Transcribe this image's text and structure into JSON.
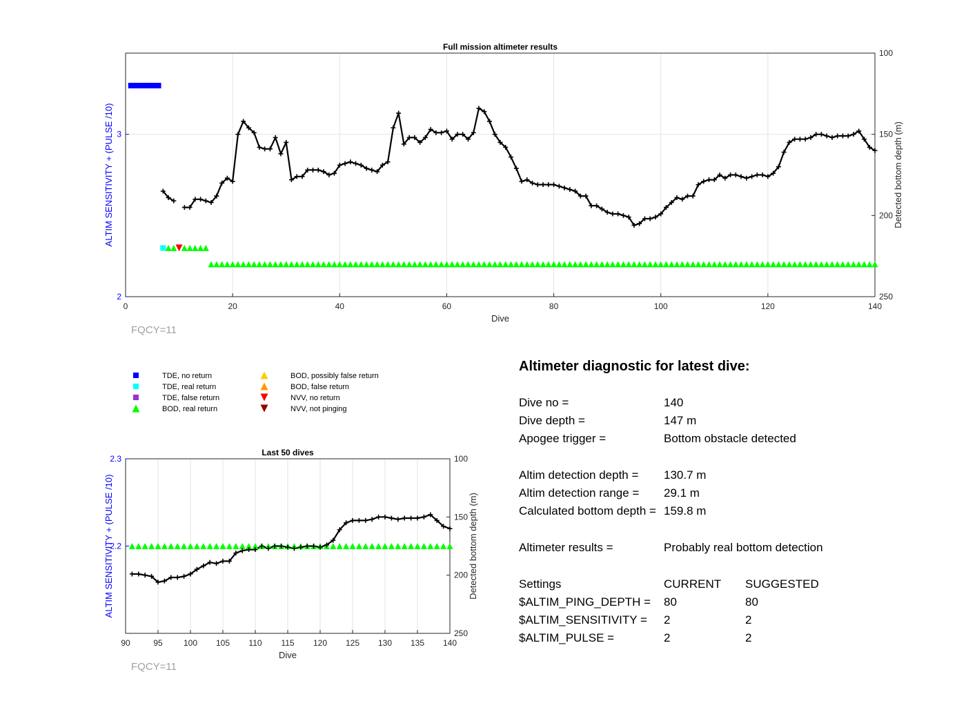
{
  "chart_data": [
    {
      "type": "line",
      "title": "Full mission altimeter results",
      "xlabel": "Dive",
      "ylabel": "ALTIM SENSITIVITY + (PULSE /10)",
      "y2label": "Detected bottom depth (m)",
      "xlim": [
        0,
        140
      ],
      "ylim": [
        2,
        3.5
      ],
      "y2lim": [
        250,
        100
      ],
      "y2_reversed": true,
      "xticks": [
        0,
        20,
        40,
        60,
        80,
        100,
        120,
        140
      ],
      "yticks": [
        2,
        3
      ],
      "y2ticks": [
        100,
        150,
        200,
        250
      ],
      "grid": true,
      "annotation": "FQCY=11",
      "series": [
        {
          "name": "Detected bottom depth",
          "axis": "right",
          "segments": [
            [
              [
                7,
                185
              ],
              [
                8,
                189
              ],
              [
                9,
                191
              ]
            ],
            [
              [
                11,
                195
              ],
              [
                12,
                195
              ],
              [
                13,
                190
              ],
              [
                14,
                190
              ],
              [
                15,
                191
              ],
              [
                16,
                192
              ],
              [
                17,
                188
              ],
              [
                18,
                180
              ],
              [
                19,
                177
              ],
              [
                20,
                179
              ],
              [
                21,
                150
              ],
              [
                22,
                142
              ],
              [
                23,
                146
              ],
              [
                24,
                149
              ],
              [
                25,
                158
              ],
              [
                26,
                159
              ],
              [
                27,
                159
              ],
              [
                28,
                152
              ],
              [
                29,
                162
              ],
              [
                30,
                155
              ],
              [
                31,
                178
              ],
              [
                32,
                176
              ],
              [
                33,
                176
              ],
              [
                34,
                172
              ],
              [
                35,
                172
              ],
              [
                36,
                172
              ],
              [
                37,
                173
              ],
              [
                38,
                175
              ],
              [
                39,
                174
              ],
              [
                40,
                169
              ],
              [
                41,
                168
              ],
              [
                42,
                167
              ],
              [
                43,
                168
              ],
              [
                44,
                169
              ],
              [
                45,
                171
              ],
              [
                46,
                172
              ],
              [
                47,
                173
              ],
              [
                48,
                169
              ],
              [
                49,
                167
              ],
              [
                50,
                146
              ],
              [
                51,
                137
              ],
              [
                52,
                156
              ],
              [
                53,
                152
              ],
              [
                54,
                152
              ],
              [
                55,
                155
              ],
              [
                56,
                152
              ],
              [
                57,
                147
              ],
              [
                58,
                149
              ],
              [
                59,
                149
              ],
              [
                60,
                148
              ],
              [
                61,
                153
              ],
              [
                62,
                150
              ],
              [
                63,
                150
              ],
              [
                64,
                153
              ],
              [
                65,
                149
              ],
              [
                66,
                134
              ],
              [
                67,
                136
              ],
              [
                68,
                142
              ],
              [
                69,
                150
              ],
              [
                70,
                155
              ],
              [
                71,
                158
              ],
              [
                72,
                164
              ],
              [
                73,
                171
              ],
              [
                74,
                179
              ],
              [
                75,
                178
              ],
              [
                76,
                180
              ],
              [
                77,
                181
              ],
              [
                78,
                181
              ],
              [
                79,
                181
              ],
              [
                80,
                181
              ],
              [
                81,
                182
              ],
              [
                82,
                183
              ],
              [
                83,
                184
              ],
              [
                84,
                185
              ],
              [
                85,
                188
              ],
              [
                86,
                188
              ],
              [
                87,
                194
              ],
              [
                88,
                194
              ],
              [
                89,
                196
              ],
              [
                90,
                198
              ],
              [
                91,
                199
              ],
              [
                92,
                199
              ],
              [
                93,
                200
              ],
              [
                94,
                201
              ],
              [
                95,
                206
              ],
              [
                96,
                205
              ],
              [
                97,
                202
              ],
              [
                98,
                202
              ],
              [
                99,
                201
              ],
              [
                100,
                199
              ],
              [
                101,
                195
              ],
              [
                102,
                192
              ],
              [
                103,
                189
              ],
              [
                104,
                190
              ],
              [
                105,
                188
              ],
              [
                106,
                188
              ],
              [
                107,
                181
              ],
              [
                108,
                179
              ],
              [
                109,
                178
              ],
              [
                110,
                178
              ],
              [
                111,
                175
              ],
              [
                112,
                177
              ],
              [
                113,
                175
              ],
              [
                114,
                175
              ],
              [
                115,
                176
              ],
              [
                116,
                177
              ],
              [
                117,
                176
              ],
              [
                118,
                175
              ],
              [
                119,
                175
              ],
              [
                120,
                176
              ],
              [
                121,
                174
              ],
              [
                122,
                170
              ],
              [
                123,
                161
              ],
              [
                124,
                155
              ],
              [
                125,
                153
              ],
              [
                126,
                153
              ],
              [
                127,
                153
              ],
              [
                128,
                152
              ],
              [
                129,
                150
              ],
              [
                130,
                150
              ],
              [
                131,
                151
              ],
              [
                132,
                152
              ],
              [
                133,
                151
              ],
              [
                134,
                151
              ],
              [
                135,
                151
              ],
              [
                136,
                150
              ],
              [
                137,
                148
              ],
              [
                138,
                153
              ],
              [
                139,
                158
              ],
              [
                140,
                160
              ]
            ]
          ]
        },
        {
          "name": "TDE, no return",
          "axis": "left",
          "marker": "square",
          "color": "#0000ff",
          "x": [
            1,
            2,
            3,
            4,
            5,
            6
          ],
          "y": [
            3.3,
            3.3,
            3.3,
            3.3,
            3.3,
            3.3
          ]
        },
        {
          "name": "TDE, real return",
          "axis": "left",
          "marker": "square",
          "color": "#00ffff",
          "x": [
            7
          ],
          "y": [
            2.3
          ]
        },
        {
          "name": "BOD, real return",
          "axis": "left",
          "marker": "triangle-up",
          "color": "#00ff00",
          "segments": [
            {
              "x": [
                8,
                9,
                11,
                12,
                13,
                14,
                15
              ],
              "y": 2.3
            },
            {
              "x_from": 16,
              "x_to": 140,
              "y": 2.2
            }
          ]
        },
        {
          "name": "NVV, no return",
          "axis": "left",
          "marker": "triangle-down",
          "color": "#ff0000",
          "x": [
            10
          ],
          "y": [
            2.3
          ]
        }
      ]
    },
    {
      "type": "line",
      "title": "Last 50 dives",
      "xlabel": "Dive",
      "ylabel": "ALTIM SENSITIVITY + (PULSE /10)",
      "y2label": "Detected bottom depth (m)",
      "xlim": [
        90,
        140
      ],
      "ylim": [
        2.1,
        2.3
      ],
      "y2lim": [
        250,
        100
      ],
      "y2_reversed": true,
      "xticks": [
        90,
        95,
        100,
        105,
        110,
        115,
        120,
        125,
        130,
        135,
        140
      ],
      "yticks": [
        2.2,
        2.3
      ],
      "y2ticks": [
        100,
        150,
        200,
        250
      ],
      "grid": true,
      "annotation": "FQCY=11",
      "series": [
        {
          "name": "Detected bottom depth",
          "axis": "right",
          "x_from": 91,
          "x_to": 140
        },
        {
          "name": "BOD, real return",
          "axis": "left",
          "marker": "triangle-up",
          "color": "#00ff00",
          "x_from": 91,
          "x_to": 140,
          "y": 2.2
        }
      ]
    }
  ],
  "legend": {
    "items": [
      {
        "label": "TDE, no return",
        "marker": "square",
        "color": "#0000ff"
      },
      {
        "label": "TDE, real return",
        "marker": "square",
        "color": "#00ffff"
      },
      {
        "label": "TDE, false return",
        "marker": "square",
        "color": "#9933cc"
      },
      {
        "label": "BOD, real return",
        "marker": "triangle-up",
        "color": "#00ff00"
      },
      {
        "label": "BOD, possibly false return",
        "marker": "triangle-up",
        "color": "#ffcc00"
      },
      {
        "label": "BOD, false return",
        "marker": "triangle-up",
        "color": "#ff9900"
      },
      {
        "label": "NVV, no return",
        "marker": "triangle-down",
        "color": "#ff0000"
      },
      {
        "label": "NVV, not pinging",
        "marker": "triangle-down",
        "color": "#990000"
      }
    ]
  },
  "diagnostic": {
    "heading": "Altimeter diagnostic for latest dive:",
    "dive_no_label": "Dive no =",
    "dive_no": "140",
    "dive_depth_label": "Dive depth =",
    "dive_depth": "147 m",
    "apogee_label": "Apogee trigger =",
    "apogee": "Bottom obstacle detected",
    "detect_depth_label": "Altim detection depth =",
    "detect_depth": "130.7 m",
    "detect_range_label": "Altim detection range =",
    "detect_range": "29.1 m",
    "calc_depth_label": "Calculated bottom depth =",
    "calc_depth": "159.8 m",
    "results_label": "Altimeter results =",
    "results": "Probably real bottom detection",
    "settings_label": "Settings",
    "current_label": "CURRENT",
    "suggested_label": "SUGGESTED",
    "ping_depth_label": "$ALTIM_PING_DEPTH =",
    "ping_depth_current": "80",
    "ping_depth_suggested": "80",
    "sensitivity_label": "$ALTIM_SENSITIVITY =",
    "sensitivity_current": "2",
    "sensitivity_suggested": "2",
    "pulse_label": "$ALTIM_PULSE =",
    "pulse_current": "2",
    "pulse_suggested": "2"
  }
}
